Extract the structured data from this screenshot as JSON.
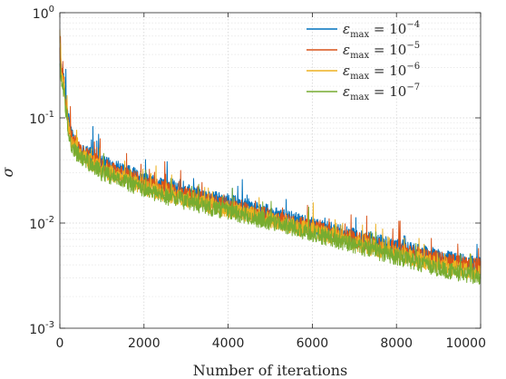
{
  "chart_data": {
    "type": "line",
    "xlabel": "Number of iterations",
    "ylabel": "σ",
    "yscale": "log",
    "xlim": [
      0,
      10000
    ],
    "ylim": [
      0.001,
      1
    ],
    "grid": true,
    "legend_position": "top-right",
    "x_ticks": [
      {
        "value": 0,
        "label": "0"
      },
      {
        "value": 2000,
        "label": "2000"
      },
      {
        "value": 4000,
        "label": "4000"
      },
      {
        "value": 6000,
        "label": "6000"
      },
      {
        "value": 8000,
        "label": "8000"
      },
      {
        "value": 10000,
        "label": "10000"
      }
    ],
    "y_ticks": [
      {
        "value": 1,
        "base": "10",
        "exp": "0"
      },
      {
        "value": 0.1,
        "base": "10",
        "exp": "-1"
      },
      {
        "value": 0.01,
        "base": "10",
        "exp": "-2"
      },
      {
        "value": 0.001,
        "base": "10",
        "exp": "-3"
      }
    ],
    "series": [
      {
        "name": "ε_max = 10^-4",
        "legend": {
          "symbol": "ε",
          "sub": "max",
          "eq": " = 10",
          "exp": "−4"
        },
        "color": "#0072BD",
        "points": [
          [
            0,
            0.4
          ],
          [
            30,
            0.3
          ],
          [
            100,
            0.22
          ],
          [
            200,
            0.1
          ],
          [
            300,
            0.065
          ],
          [
            500,
            0.05
          ],
          [
            800,
            0.043
          ],
          [
            1000,
            0.037
          ],
          [
            1500,
            0.031
          ],
          [
            2000,
            0.026
          ],
          [
            2500,
            0.022
          ],
          [
            3000,
            0.02
          ],
          [
            3500,
            0.0175
          ],
          [
            4000,
            0.0158
          ],
          [
            4500,
            0.0143
          ],
          [
            5000,
            0.0123
          ],
          [
            5500,
            0.0108
          ],
          [
            6000,
            0.0095
          ],
          [
            6500,
            0.0084
          ],
          [
            7000,
            0.0074
          ],
          [
            7500,
            0.0066
          ],
          [
            8000,
            0.006
          ],
          [
            8500,
            0.0053
          ],
          [
            9000,
            0.0047
          ],
          [
            9500,
            0.0043
          ],
          [
            10000,
            0.004
          ]
        ]
      },
      {
        "name": "ε_max = 10^-5",
        "legend": {
          "symbol": "ε",
          "sub": "max",
          "eq": " = 10",
          "exp": "−5"
        },
        "color": "#D95319",
        "points": [
          [
            0,
            0.45
          ],
          [
            30,
            0.32
          ],
          [
            100,
            0.21
          ],
          [
            200,
            0.09
          ],
          [
            300,
            0.06
          ],
          [
            500,
            0.047
          ],
          [
            800,
            0.04
          ],
          [
            1000,
            0.035
          ],
          [
            1500,
            0.029
          ],
          [
            2000,
            0.024
          ],
          [
            2500,
            0.021
          ],
          [
            3000,
            0.0185
          ],
          [
            3500,
            0.0163
          ],
          [
            4000,
            0.0145
          ],
          [
            4500,
            0.013
          ],
          [
            5000,
            0.0115
          ],
          [
            5500,
            0.0101
          ],
          [
            6000,
            0.009
          ],
          [
            6500,
            0.0079
          ],
          [
            7000,
            0.007
          ],
          [
            7500,
            0.0062
          ],
          [
            8000,
            0.0056
          ],
          [
            8500,
            0.005
          ],
          [
            9000,
            0.0045
          ],
          [
            9500,
            0.0041
          ],
          [
            10000,
            0.0038
          ]
        ]
      },
      {
        "name": "ε_max = 10^-6",
        "legend": {
          "symbol": "ε",
          "sub": "max",
          "eq": " = 10",
          "exp": "−6"
        },
        "color": "#EDB120",
        "points": [
          [
            0,
            0.7
          ],
          [
            30,
            0.3
          ],
          [
            100,
            0.19
          ],
          [
            200,
            0.08
          ],
          [
            300,
            0.055
          ],
          [
            500,
            0.044
          ],
          [
            800,
            0.037
          ],
          [
            1000,
            0.032
          ],
          [
            1500,
            0.027
          ],
          [
            2000,
            0.022
          ],
          [
            2500,
            0.019
          ],
          [
            3000,
            0.017
          ],
          [
            3500,
            0.015
          ],
          [
            4000,
            0.0135
          ],
          [
            4500,
            0.0122
          ],
          [
            5000,
            0.0108
          ],
          [
            5500,
            0.0095
          ],
          [
            6000,
            0.0084
          ],
          [
            6500,
            0.0074
          ],
          [
            7000,
            0.0065
          ],
          [
            7500,
            0.0057
          ],
          [
            8000,
            0.0051
          ],
          [
            8500,
            0.0045
          ],
          [
            9000,
            0.004
          ],
          [
            9500,
            0.0036
          ],
          [
            10000,
            0.0033
          ]
        ]
      },
      {
        "name": "ε_max = 10^-7",
        "legend": {
          "symbol": "ε",
          "sub": "max",
          "eq": " = 10",
          "exp": "−7"
        },
        "color": "#77AC30",
        "points": [
          [
            0,
            0.35
          ],
          [
            30,
            0.25
          ],
          [
            100,
            0.17
          ],
          [
            200,
            0.07
          ],
          [
            300,
            0.05
          ],
          [
            500,
            0.041
          ],
          [
            800,
            0.035
          ],
          [
            1000,
            0.03
          ],
          [
            1500,
            0.025
          ],
          [
            2000,
            0.021
          ],
          [
            2500,
            0.018
          ],
          [
            3000,
            0.016
          ],
          [
            3500,
            0.0142
          ],
          [
            4000,
            0.0128
          ],
          [
            4500,
            0.0115
          ],
          [
            5000,
            0.0102
          ],
          [
            5500,
            0.009
          ],
          [
            6000,
            0.008
          ],
          [
            6500,
            0.007
          ],
          [
            7000,
            0.0061
          ],
          [
            7500,
            0.0054
          ],
          [
            8000,
            0.0048
          ],
          [
            8500,
            0.0042
          ],
          [
            9000,
            0.0037
          ],
          [
            9500,
            0.0033
          ],
          [
            10000,
            0.0031
          ]
        ]
      }
    ]
  }
}
